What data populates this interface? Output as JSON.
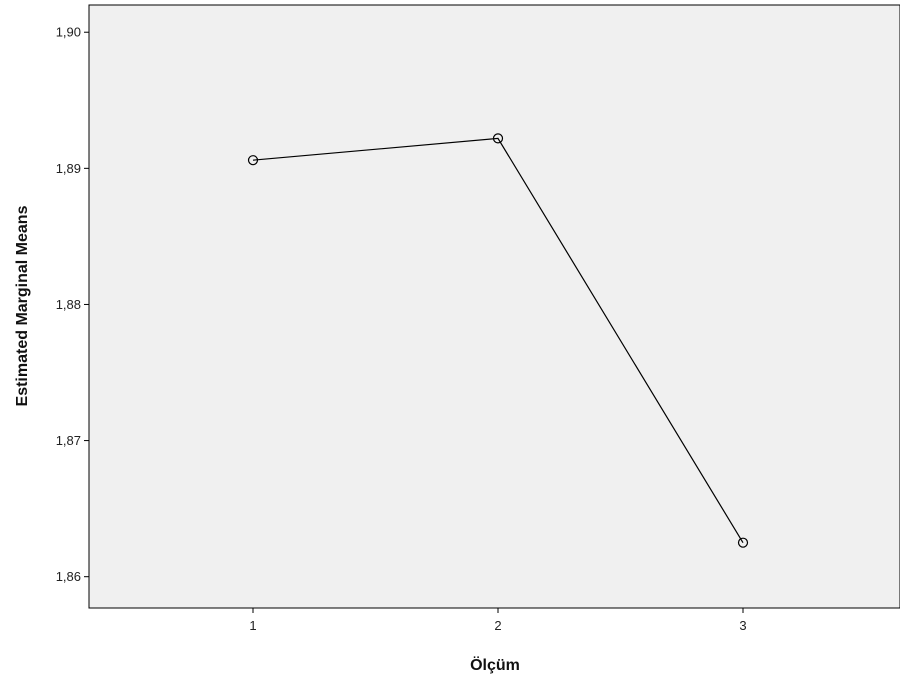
{
  "chart_data": {
    "type": "line",
    "title": "",
    "xlabel": "Ölçüm",
    "ylabel": "Estimated Marginal Means",
    "categories": [
      "1",
      "2",
      "3"
    ],
    "series": [
      {
        "values": [
          1.8906,
          1.8922,
          1.8625
        ]
      }
    ],
    "ylim": [
      1.8577,
      1.902
    ],
    "yticks": [
      1.86,
      1.87,
      1.88,
      1.89,
      1.9
    ],
    "ytick_labels": [
      "1,86",
      "1,87",
      "1,88",
      "1,89",
      "1,90"
    ],
    "grid": false,
    "markers": "open-circle",
    "colors": {
      "plot_background": "#f0f0f0",
      "line": "#000000",
      "frame": "#000000"
    }
  }
}
